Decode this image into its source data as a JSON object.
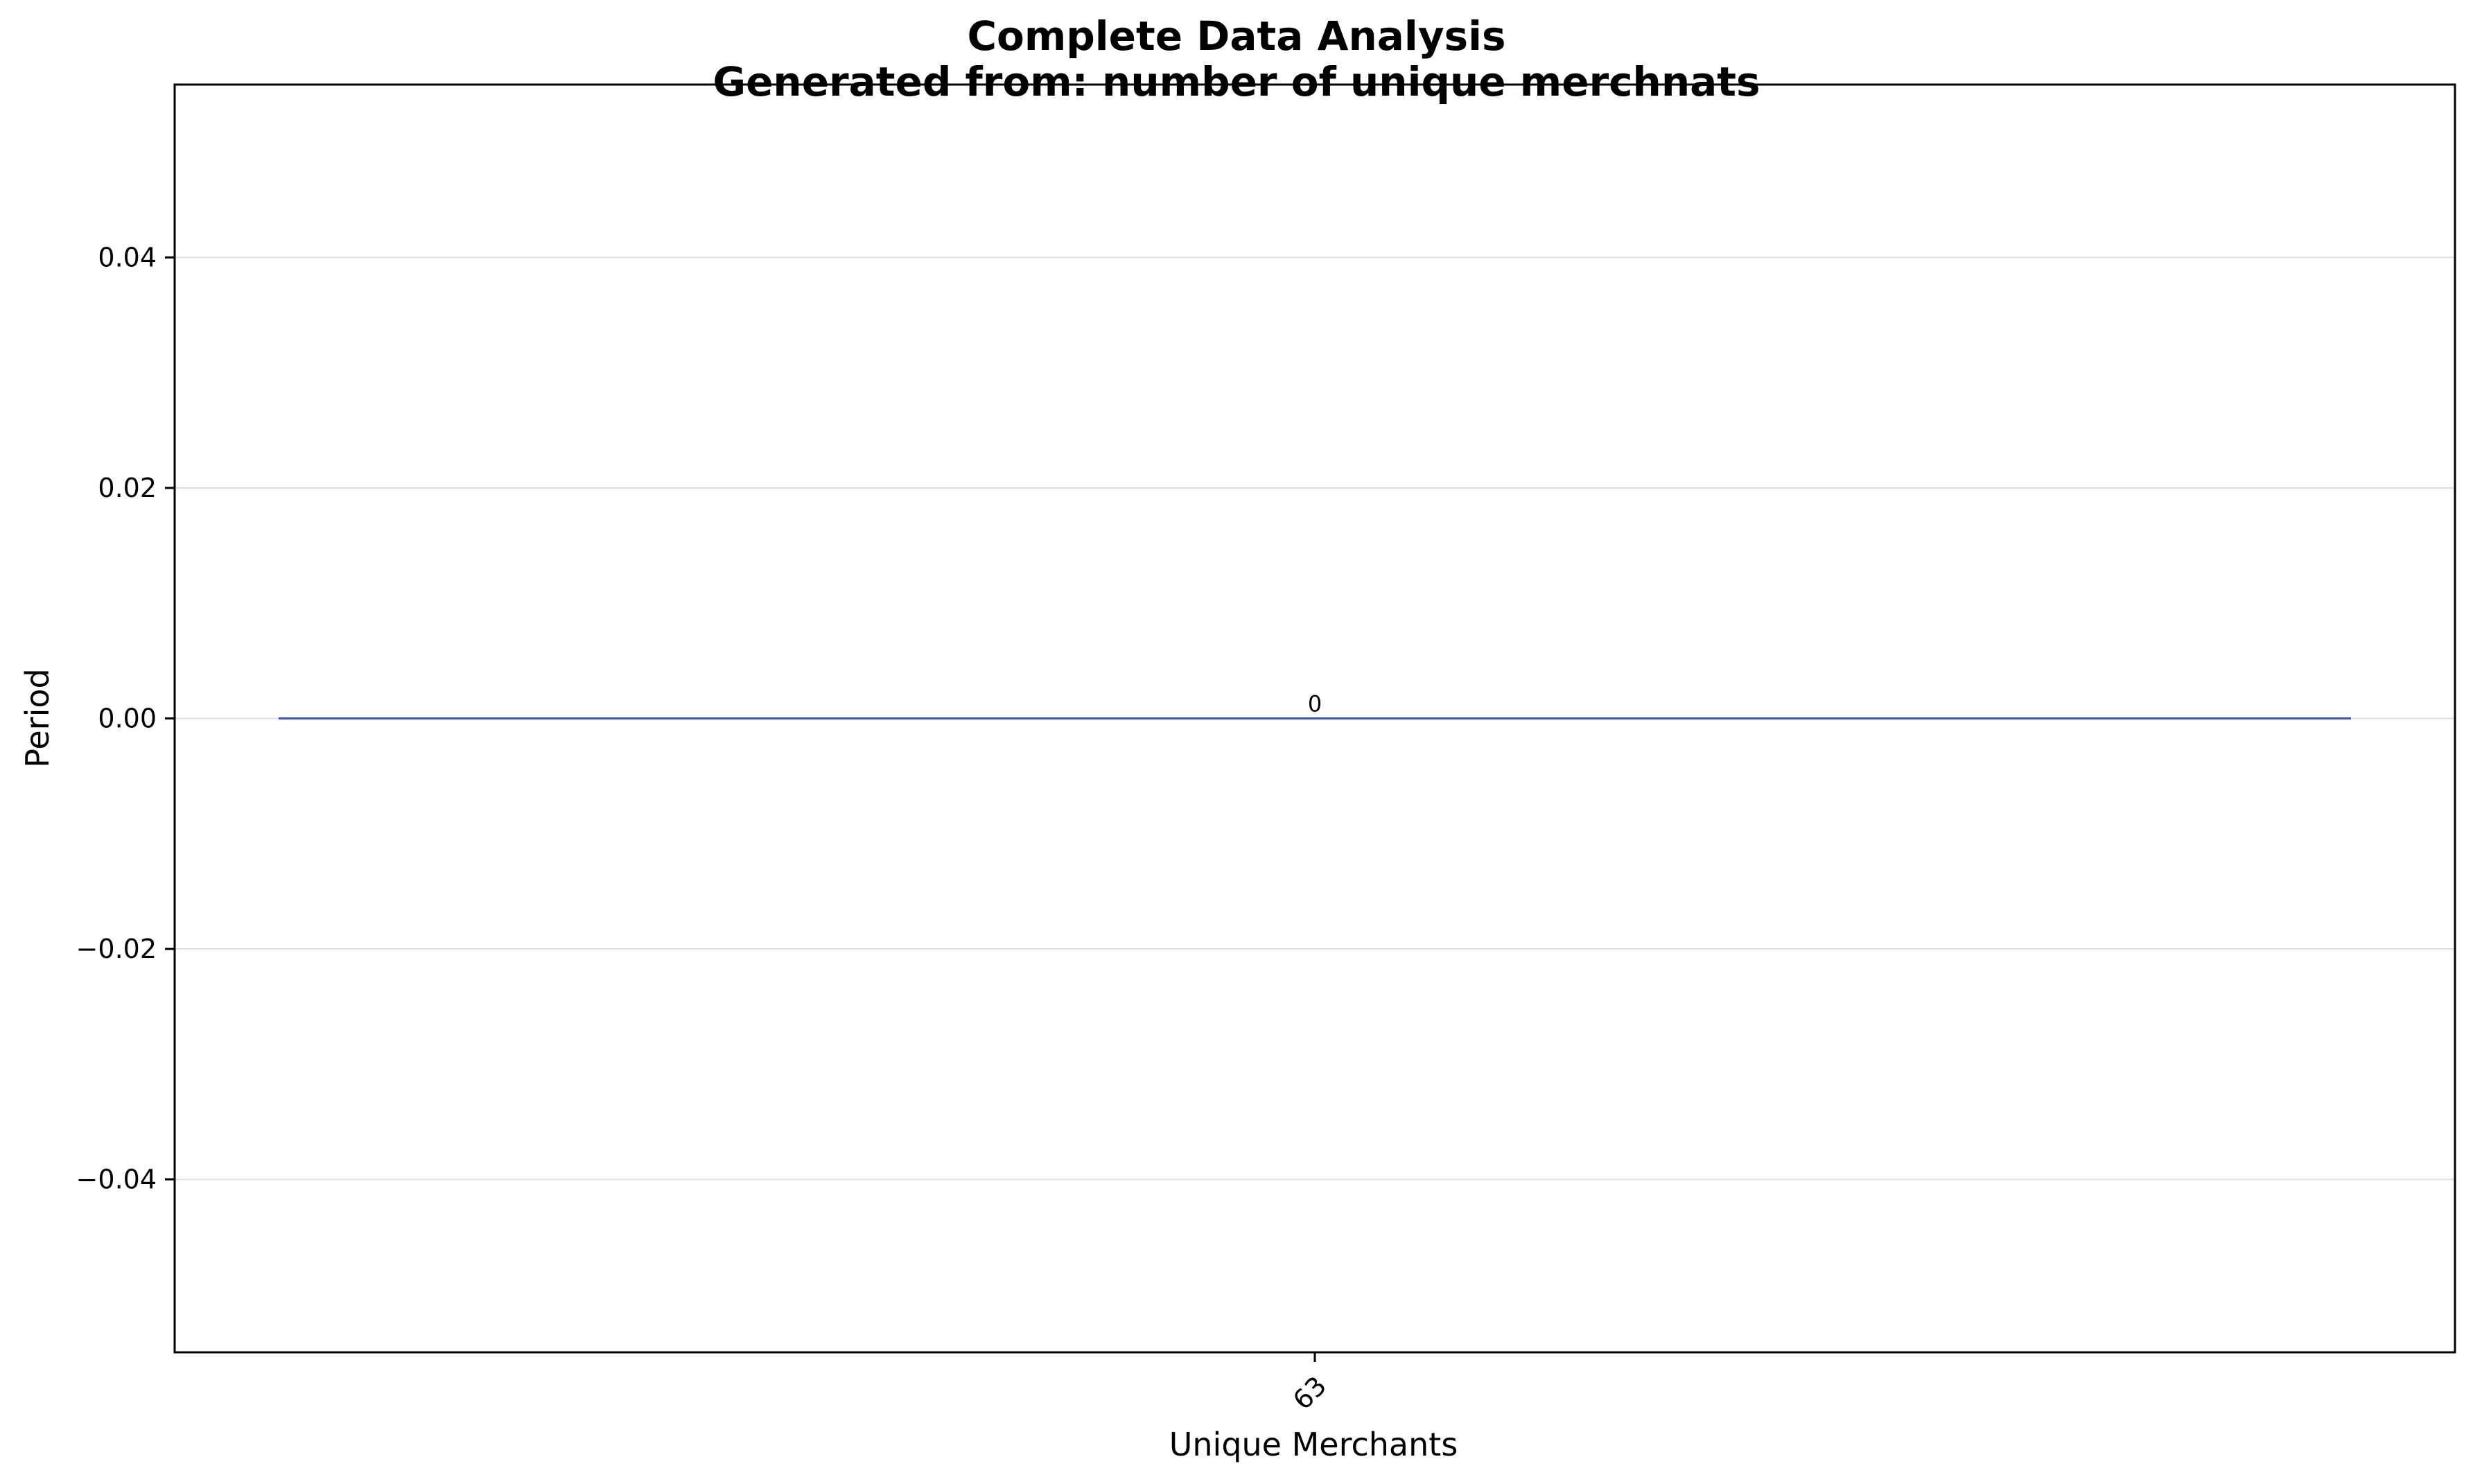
{
  "chart_data": {
    "type": "bar",
    "title": "Complete Data Analysis",
    "subtitle": "Generated from: number of unique merchnats",
    "xlabel": "Unique Merchants",
    "ylabel": "Period",
    "categories": [
      "63"
    ],
    "values": [
      0
    ],
    "data_labels": [
      "0"
    ],
    "ylim": [
      -0.055,
      0.055
    ],
    "yticks": [
      -0.04,
      -0.02,
      0.0,
      0.02,
      0.04
    ],
    "ytick_labels": [
      "−0.04",
      "−0.02",
      "0.00",
      "0.02",
      "0.04"
    ],
    "grid": true,
    "bar_color": "#3f4fc0",
    "grid_color": "#e0e0e0",
    "legend": "none"
  }
}
